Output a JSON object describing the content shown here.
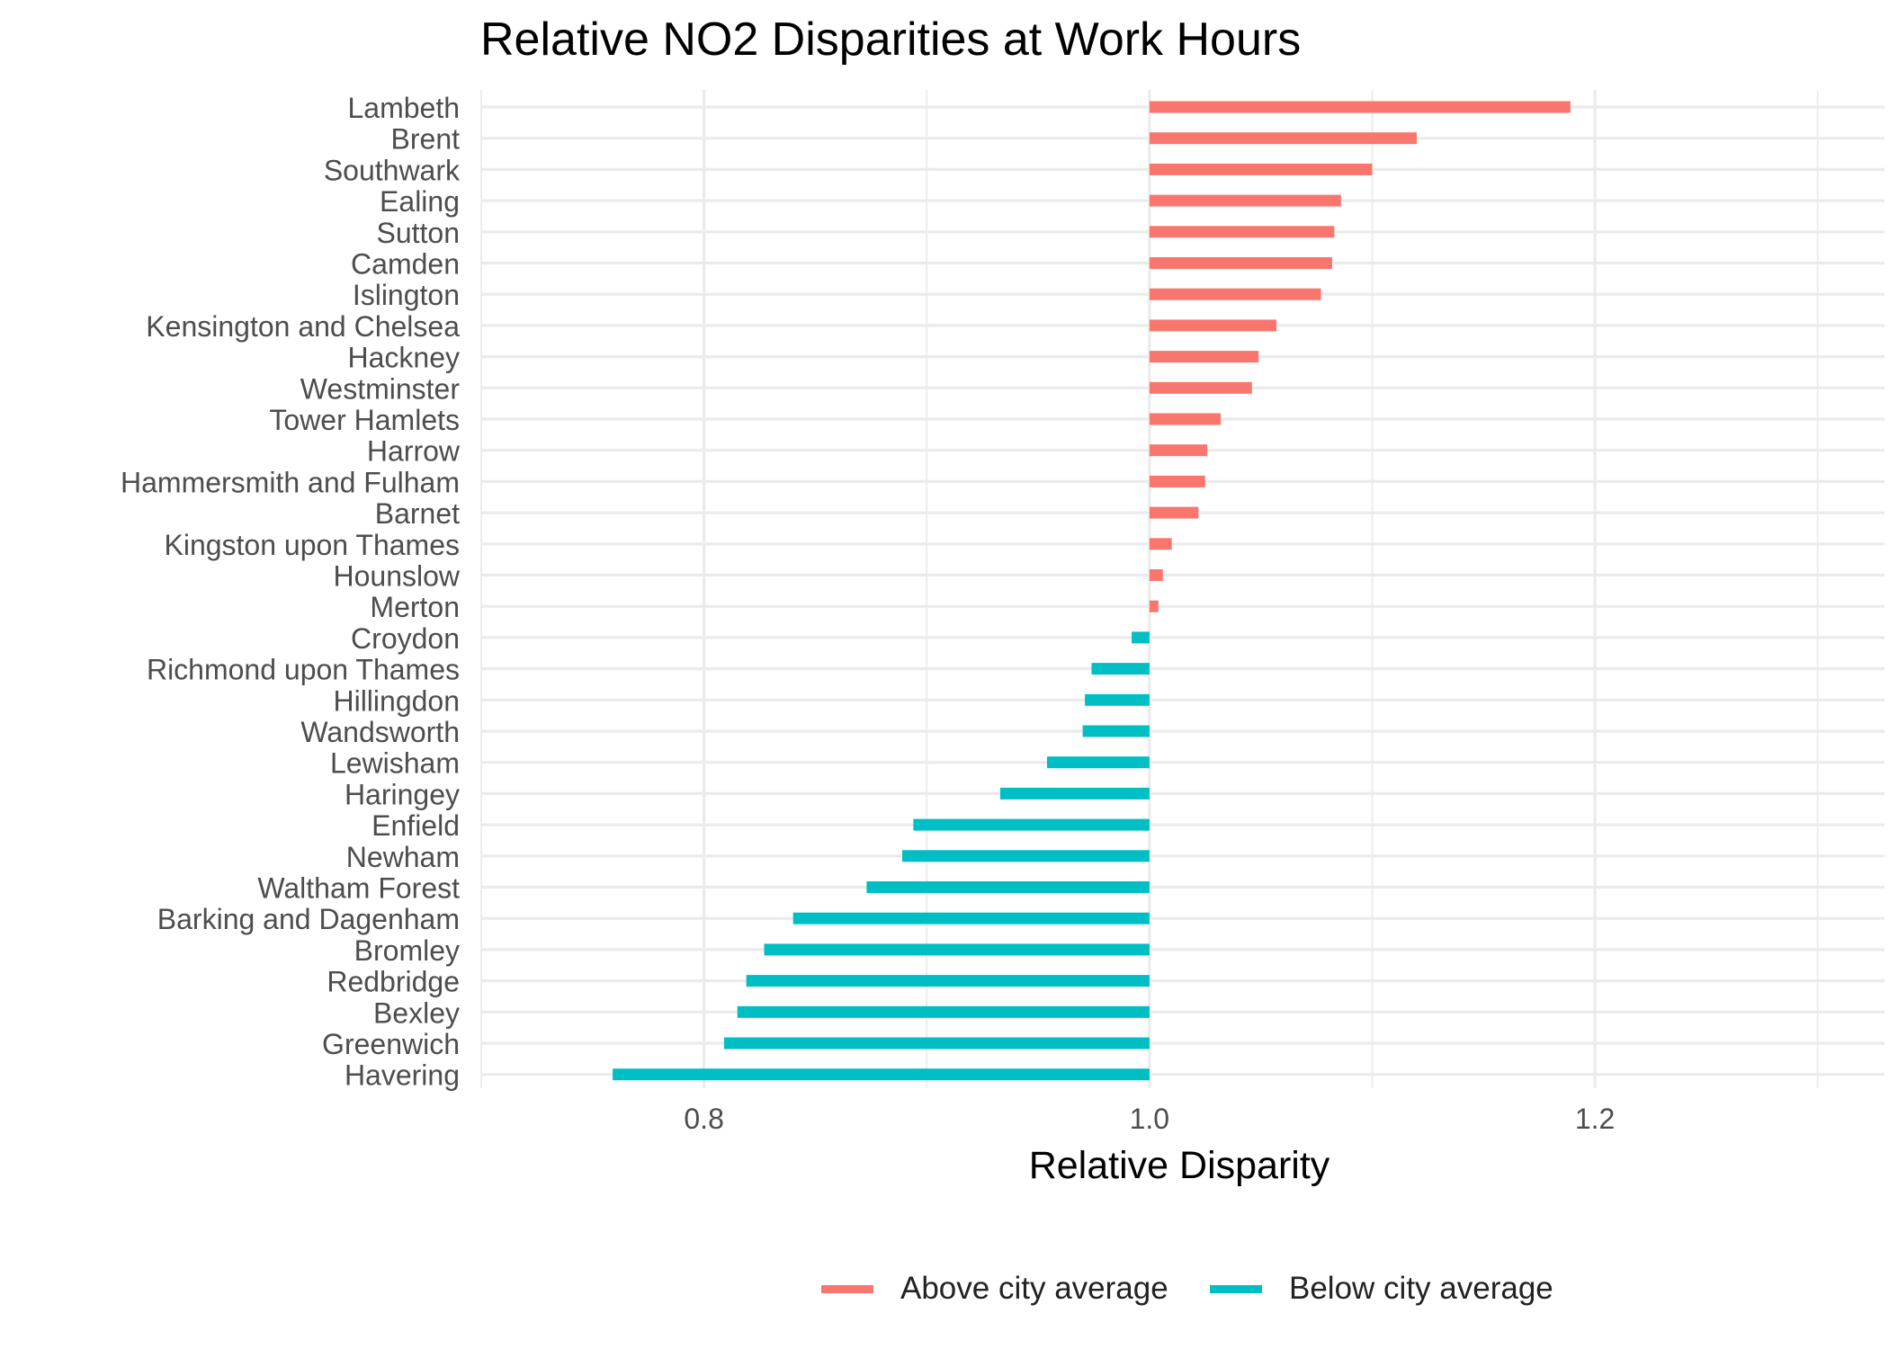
{
  "chart_data": {
    "type": "bar",
    "orientation": "horizontal",
    "title": "Relative NO2 Disparities at Work Hours",
    "xlabel": "Relative Disparity",
    "ylabel": "",
    "xlim": [
      0.7,
      1.33
    ],
    "baseline": 1.0,
    "x_ticks": [
      "0.8",
      "1.0",
      "1.2"
    ],
    "grid": true,
    "legend_position": "bottom",
    "colors": {
      "above": "#F8766D",
      "below": "#00BFC4"
    },
    "legend": [
      {
        "key": "above",
        "label": "Above city average"
      },
      {
        "key": "below",
        "label": "Below city average"
      }
    ],
    "categories": [
      "Lambeth",
      "Brent",
      "Southwark",
      "Ealing",
      "Sutton",
      "Camden",
      "Islington",
      "Kensington and Chelsea",
      "Hackney",
      "Westminster",
      "Tower Hamlets",
      "Harrow",
      "Hammersmith and Fulham",
      "Barnet",
      "Kingston upon Thames",
      "Hounslow",
      "Merton",
      "Croydon",
      "Richmond upon Thames",
      "Hillingdon",
      "Wandsworth",
      "Lewisham",
      "Haringey",
      "Enfield",
      "Newham",
      "Waltham Forest",
      "Barking and Dagenham",
      "Bromley",
      "Redbridge",
      "Bexley",
      "Greenwich",
      "Havering"
    ],
    "values": [
      1.189,
      1.12,
      1.1,
      1.086,
      1.083,
      1.082,
      1.077,
      1.057,
      1.049,
      1.046,
      1.032,
      1.026,
      1.025,
      1.022,
      1.01,
      1.006,
      1.004,
      0.992,
      0.974,
      0.971,
      0.97,
      0.954,
      0.933,
      0.894,
      0.889,
      0.873,
      0.84,
      0.827,
      0.819,
      0.815,
      0.809,
      0.759
    ]
  }
}
